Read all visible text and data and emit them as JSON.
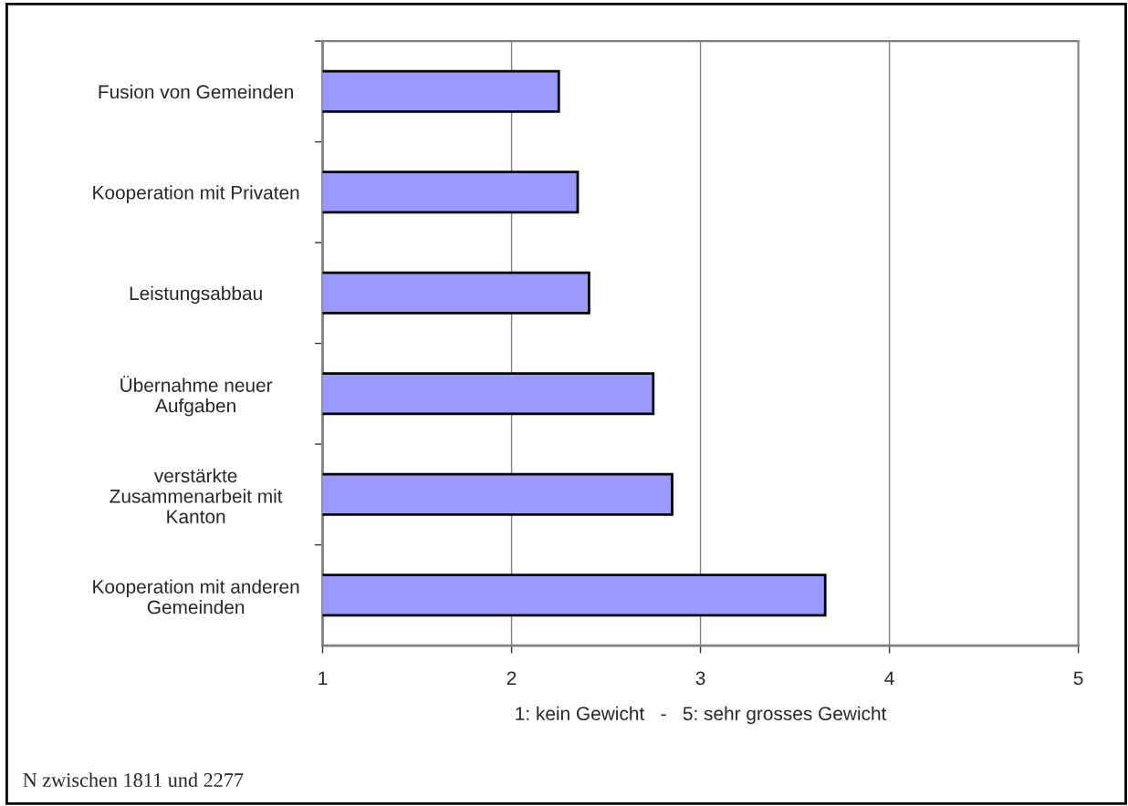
{
  "chart_data": {
    "type": "bar",
    "orientation": "horizontal",
    "categories": [
      "Fusion von Gemeinden",
      "Kooperation mit Privaten",
      "Leistungsabbau",
      "Übernahme neuer\nAufgaben",
      "verstärkte\nZusammenarbeit mit\nKanton",
      "Kooperation mit anderen\nGemeinden"
    ],
    "values": [
      2.25,
      2.35,
      2.41,
      2.75,
      2.85,
      3.66
    ],
    "color": "#9999ff",
    "xlim": [
      1,
      5
    ],
    "xticks": [
      1,
      2,
      3,
      4,
      5
    ],
    "grid": "x",
    "xlabel": "1: kein Gewicht   -   5: sehr grosses Gewicht",
    "annotations": [
      "N zwischen 1811 und 2277"
    ]
  }
}
